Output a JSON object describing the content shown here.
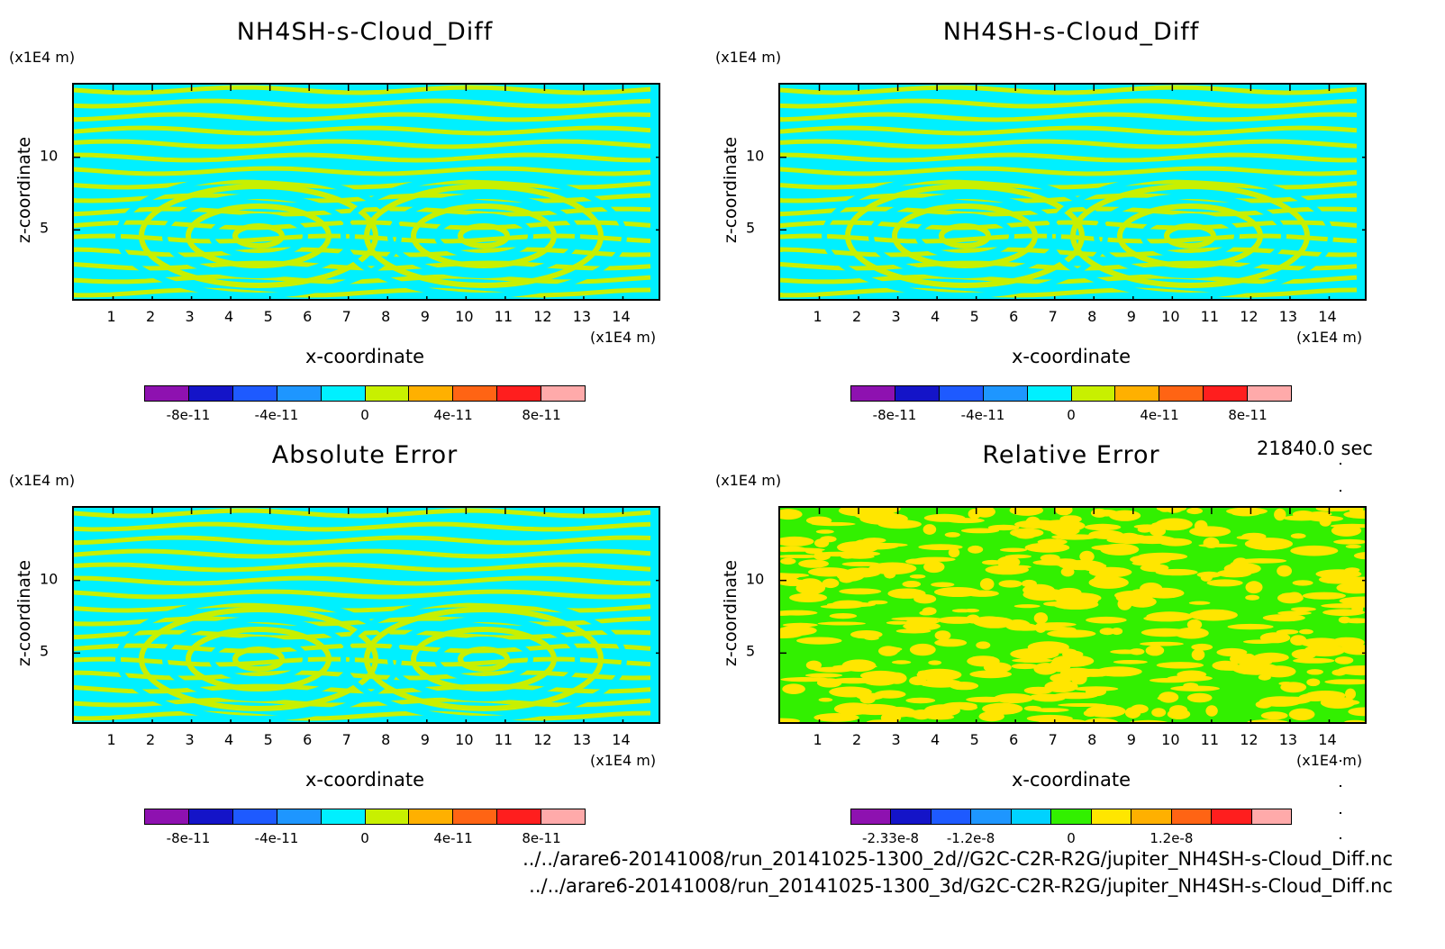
{
  "x_unit": "(x1E4 m)",
  "y_unit": "(x1E4 m)",
  "xlabel": "x-coordinate",
  "ylabel": "z-coordinate",
  "x_ticks": [
    "1",
    "2",
    "3",
    "4",
    "5",
    "6",
    "7",
    "8",
    "9",
    "10",
    "11",
    "12",
    "13",
    "14"
  ],
  "y_ticks": [
    "5",
    "10"
  ],
  "timestamp": "21840.0 sec",
  "footer": {
    "file1": "../../arare6-20141008/run_20141025-1300_2d//G2C-C2R-R2G/jupiter_NH4SH-s-Cloud_Diff.nc",
    "file2": "../../arare6-20141008/run_20141025-1300_3d/G2C-C2R-R2G/jupiter_NH4SH-s-Cloud_Diff.nc"
  },
  "chart_data": [
    {
      "type": "heatmap",
      "title": "NH4SH-s-Cloud_Diff",
      "xlabel": "x-coordinate",
      "ylabel": "z-coordinate",
      "xlim": [
        0,
        15
      ],
      "ylim": [
        0,
        15
      ],
      "colorbar": {
        "labels": [
          "-8e-11",
          "-4e-11",
          "0",
          "4e-11",
          "8e-11"
        ],
        "colors": [
          "#8e11b0",
          "#1414c8",
          "#1e5aff",
          "#1e96ff",
          "#00f0ff",
          "#c8f000",
          "#ffb000",
          "#ff6414",
          "#ff1e1e",
          "#ffaaaa"
        ]
      },
      "dominant_colors": [
        "#00f0ff",
        "#c8f000"
      ]
    },
    {
      "type": "heatmap",
      "title": "NH4SH-s-Cloud_Diff",
      "xlabel": "x-coordinate",
      "ylabel": "z-coordinate",
      "xlim": [
        0,
        15
      ],
      "ylim": [
        0,
        15
      ],
      "colorbar": {
        "labels": [
          "-8e-11",
          "-4e-11",
          "0",
          "4e-11",
          "8e-11"
        ],
        "colors": [
          "#8e11b0",
          "#1414c8",
          "#1e5aff",
          "#1e96ff",
          "#00f0ff",
          "#c8f000",
          "#ffb000",
          "#ff6414",
          "#ff1e1e",
          "#ffaaaa"
        ]
      },
      "dominant_colors": [
        "#00f0ff",
        "#c8f000"
      ]
    },
    {
      "type": "heatmap",
      "title": "Absolute Error",
      "xlabel": "x-coordinate",
      "ylabel": "z-coordinate",
      "xlim": [
        0,
        15
      ],
      "ylim": [
        0,
        15
      ],
      "colorbar": {
        "labels": [
          "-8e-11",
          "-4e-11",
          "0",
          "4e-11",
          "8e-11"
        ],
        "colors": [
          "#8e11b0",
          "#1414c8",
          "#1e5aff",
          "#1e96ff",
          "#00f0ff",
          "#c8f000",
          "#ffb000",
          "#ff6414",
          "#ff1e1e",
          "#ffaaaa"
        ]
      },
      "dominant_colors": [
        "#00f0ff",
        "#c8f000"
      ]
    },
    {
      "type": "heatmap",
      "title": "Relative Error",
      "xlabel": "x-coordinate",
      "ylabel": "z-coordinate",
      "xlim": [
        0,
        15
      ],
      "ylim": [
        0,
        15
      ],
      "colorbar": {
        "labels": [
          "-2.33e-8",
          "-1.2e-8",
          "0",
          "1.2e-8"
        ],
        "colors": [
          "#8e11b0",
          "#1414c8",
          "#1e5aff",
          "#1e96ff",
          "#00d2ff",
          "#32f000",
          "#ffe600",
          "#ffb000",
          "#ff6414",
          "#ff1e1e",
          "#ffaaaa"
        ]
      },
      "dominant_colors": [
        "#32f000",
        "#ffe600"
      ]
    }
  ]
}
